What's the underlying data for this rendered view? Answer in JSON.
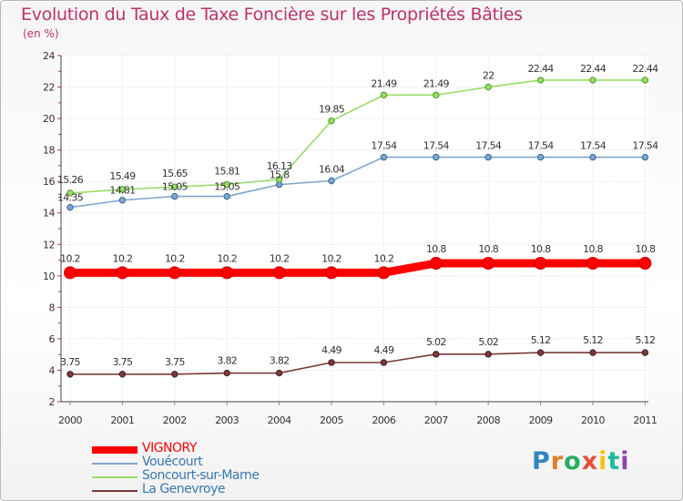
{
  "header": {
    "title": "Evolution du Taux de Taxe Foncière sur les Propriétés Bâties",
    "subtitle": "(en %)"
  },
  "brand": {
    "letters": [
      "P",
      "r",
      "o",
      "x",
      "i",
      "t",
      "i"
    ],
    "colors": [
      "#2e86c1",
      "#e67e22",
      "#27ae60",
      "#e74c3c",
      "#f1c40f",
      "#1abc9c",
      "#8e44ad"
    ]
  },
  "chart_data": {
    "type": "line",
    "title": "Evolution du Taux de Taxe Foncière sur les Propriétés Bâties",
    "ylabel": "(en %)",
    "xlabel": "",
    "x": [
      "2000",
      "2001",
      "2002",
      "2003",
      "2004",
      "2005",
      "2006",
      "2007",
      "2008",
      "2009",
      "2010",
      "2011"
    ],
    "ylim": [
      2,
      24
    ],
    "yticks": [
      "2",
      "4",
      "6",
      "8",
      "10",
      "12",
      "14",
      "16",
      "18",
      "20",
      "22",
      "24"
    ],
    "grid": true,
    "legend_position": "bottom-left",
    "series": [
      {
        "name": "VIGNORY",
        "color": "#ff0000",
        "values": [
          10.2,
          10.2,
          10.2,
          10.2,
          10.2,
          10.2,
          10.2,
          10.8,
          10.8,
          10.8,
          10.8,
          10.8
        ],
        "labels": [
          "10.2",
          "10.2",
          "10.2",
          "10.2",
          "10.2",
          "10.2",
          "10.2",
          "10.8",
          "10.8",
          "10.8",
          "10.8",
          "10.8"
        ]
      },
      {
        "name": "Vouécourt",
        "color": "#7fa6cc",
        "values": [
          14.35,
          14.81,
          15.05,
          15.05,
          15.8,
          16.04,
          17.54,
          17.54,
          17.54,
          17.54,
          17.54,
          17.54
        ],
        "labels": [
          "14.35",
          "14.81",
          "15.05",
          "15.05",
          "15.8",
          "16.04",
          "17.54",
          "17.54",
          "17.54",
          "17.54",
          "17.54",
          "17.54"
        ]
      },
      {
        "name": "Soncourt-sur-Marne",
        "color": "#99dd66",
        "values": [
          15.26,
          15.49,
          15.65,
          15.81,
          16.13,
          19.85,
          21.49,
          21.49,
          22,
          22.44,
          22.44,
          22.44
        ],
        "labels": [
          "15.26",
          "15.49",
          "15.65",
          "15.81",
          "16.13",
          "19.85",
          "21.49",
          "21.49",
          "22",
          "22.44",
          "22.44",
          "22.44"
        ]
      },
      {
        "name": "La Genevroye",
        "color": "#7a3a3a",
        "values": [
          3.75,
          3.75,
          3.75,
          3.82,
          3.82,
          4.49,
          4.49,
          5.02,
          5.02,
          5.12,
          5.12,
          5.12
        ],
        "labels": [
          "3.75",
          "3.75",
          "3.75",
          "3.82",
          "3.82",
          "4.49",
          "4.49",
          "5.02",
          "5.02",
          "5.12",
          "5.12",
          "5.12"
        ]
      }
    ]
  }
}
